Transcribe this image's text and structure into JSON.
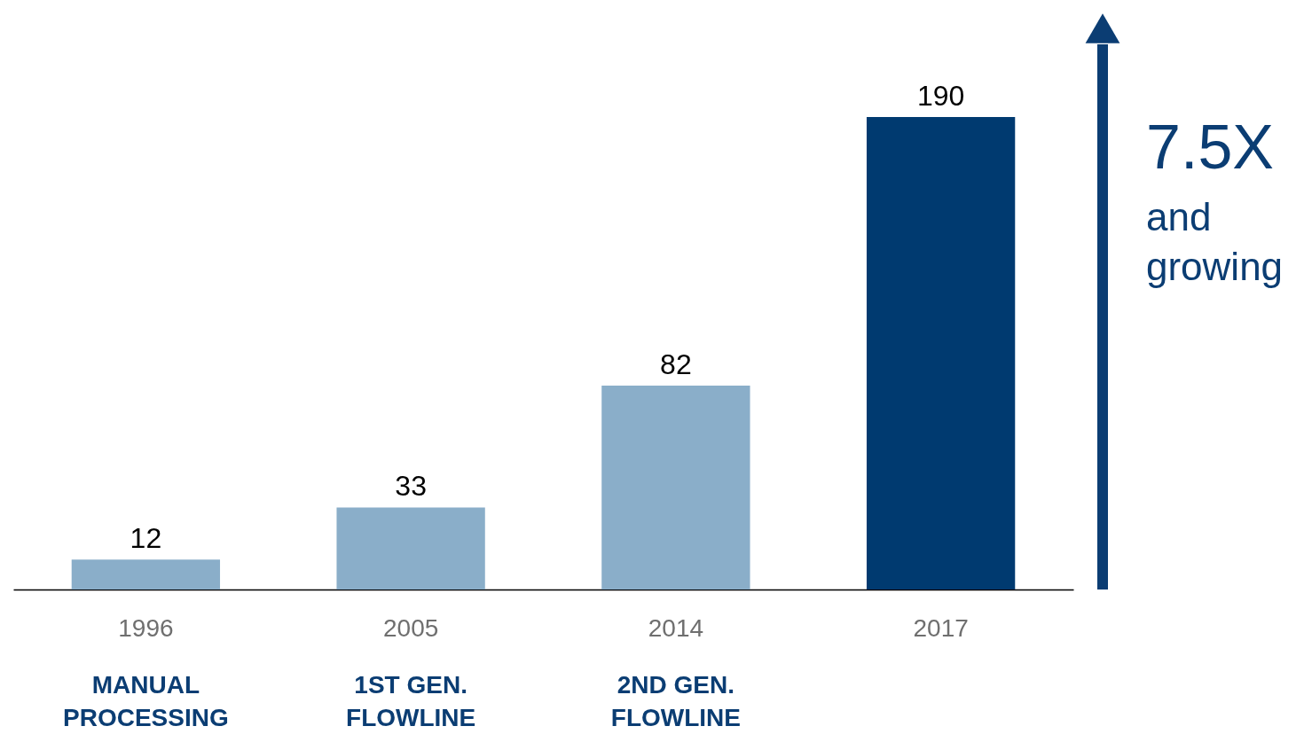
{
  "chart_data": {
    "type": "bar",
    "categories": [
      "1996",
      "2005",
      "2014",
      "2017"
    ],
    "values": [
      12,
      33,
      82,
      190
    ],
    "colors": [
      "#8aaec9",
      "#8aaec9",
      "#8aaec9",
      "#003a70"
    ],
    "data_labels": true,
    "annotations": [
      "MANUAL\nPROCESSING",
      "1ST GEN.\nFLOWLINE",
      "2ND GEN.\nFLOWLINE",
      "7.5X",
      "and\ngrowing"
    ]
  }
}
